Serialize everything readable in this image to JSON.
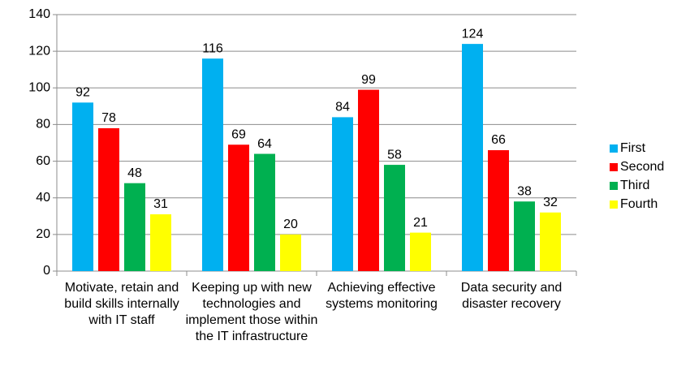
{
  "chart_data": {
    "type": "bar",
    "categories": [
      "Motivate, retain and build skills internally with IT staff",
      "Keeping up with new technologies and implement those within the IT infrastructure",
      "Achieving effective systems monitoring",
      "Data security and disaster recovery"
    ],
    "series": [
      {
        "name": "First",
        "color": "#00b0f0",
        "values": [
          92,
          116,
          84,
          124
        ]
      },
      {
        "name": "Second",
        "color": "#ff0000",
        "values": [
          78,
          69,
          99,
          66
        ]
      },
      {
        "name": "Third",
        "color": "#00b050",
        "values": [
          48,
          64,
          58,
          38
        ]
      },
      {
        "name": "Fourth",
        "color": "#ffff00",
        "values": [
          31,
          20,
          21,
          32
        ]
      }
    ],
    "ylim": [
      0,
      140
    ],
    "yticks": [
      0,
      20,
      40,
      60,
      80,
      100,
      120,
      140
    ],
    "grid": true,
    "legend": "right",
    "data_labels": true
  }
}
